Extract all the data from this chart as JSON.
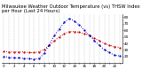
{
  "title": "Milwaukee Weather Outdoor Temperature (vs) THSW Index per Hour (Last 24 Hours)",
  "hours": [
    0,
    1,
    2,
    3,
    4,
    5,
    6,
    7,
    8,
    9,
    10,
    11,
    12,
    13,
    14,
    15,
    16,
    17,
    18,
    19,
    20,
    21,
    22,
    23
  ],
  "temp": [
    28,
    27,
    27,
    27,
    27,
    26,
    26,
    27,
    31,
    37,
    44,
    50,
    55,
    58,
    58,
    57,
    55,
    52,
    48,
    44,
    40,
    37,
    35,
    34
  ],
  "thsw": [
    20,
    19,
    18,
    18,
    17,
    17,
    16,
    17,
    25,
    38,
    52,
    62,
    72,
    78,
    74,
    68,
    60,
    52,
    44,
    37,
    30,
    26,
    22,
    21
  ],
  "temp_color": "#cc0000",
  "thsw_color": "#0000cc",
  "ylim_min": 10,
  "ylim_max": 85,
  "ytick_vals": [
    20,
    30,
    40,
    50,
    60,
    70,
    80
  ],
  "background_color": "#ffffff",
  "grid_color": "#aaaaaa",
  "title_fontsize": 3.8,
  "tick_fontsize": 3.0,
  "linewidth": 0.7,
  "markersize": 1.2
}
